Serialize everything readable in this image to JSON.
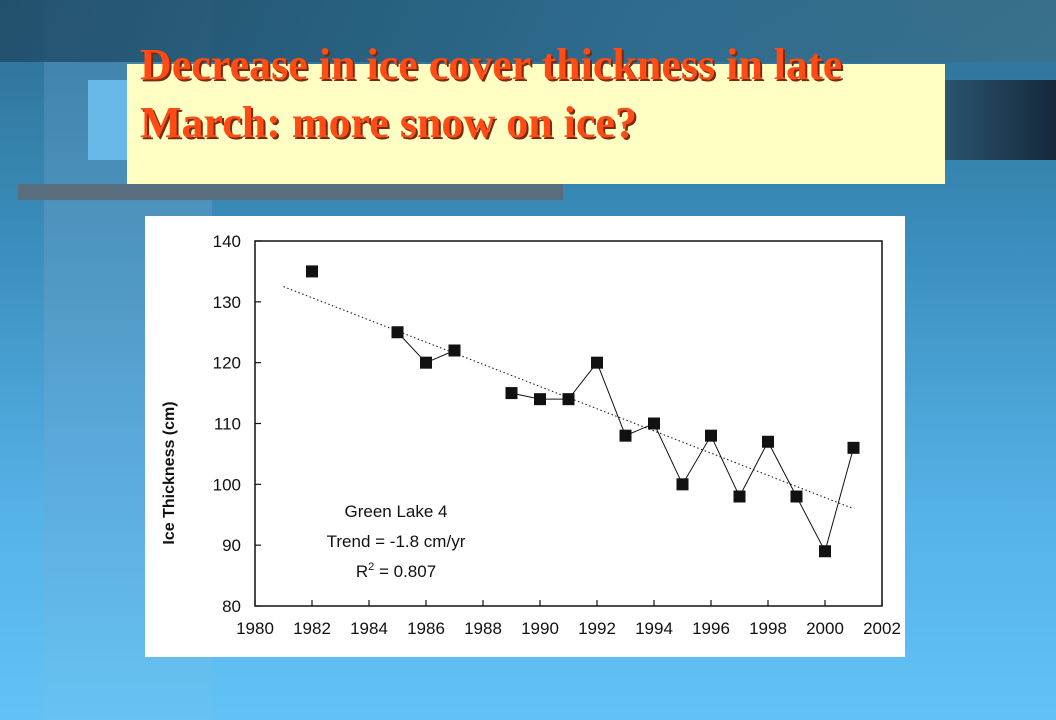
{
  "slide": {
    "title": "Decrease in ice cover thickness in late March: more snow on ice?",
    "colors": {
      "title": "#ff4b14",
      "title_box": "#ffffc4",
      "background": "#3b8fbe"
    }
  },
  "chart_data": {
    "type": "scatter",
    "xlabel": "",
    "ylabel": "Ice Thickness (cm)",
    "xlim": [
      1980,
      2002
    ],
    "ylim": [
      80,
      140
    ],
    "xticks": [
      1980,
      1982,
      1984,
      1986,
      1988,
      1990,
      1992,
      1994,
      1996,
      1998,
      2000,
      2002
    ],
    "yticks": [
      80,
      90,
      100,
      110,
      120,
      130,
      140
    ],
    "grid": false,
    "series": [
      {
        "marker": "square",
        "x": [
          1982,
          1985,
          1986,
          1987,
          1989,
          1990,
          1991,
          1992,
          1993,
          1994,
          1995,
          1996,
          1997,
          1998,
          1999,
          2000,
          2001
        ],
        "y": [
          135,
          125,
          120,
          122,
          115,
          114,
          114,
          120,
          108,
          110,
          100,
          108,
          98,
          107,
          98,
          89,
          106
        ],
        "connected_segments": [
          [
            1985,
            1987
          ],
          [
            1989,
            2001
          ]
        ]
      }
    ],
    "trend": {
      "x": [
        1981,
        2001
      ],
      "y": [
        132.5,
        96
      ],
      "style": "dotted"
    },
    "annotation": {
      "line1": "Green Lake 4",
      "line2": "Trend = -1.8 cm/yr",
      "line3_prefix": "R",
      "line3_sup": "2",
      "line3_suffix": " = 0.807"
    }
  }
}
